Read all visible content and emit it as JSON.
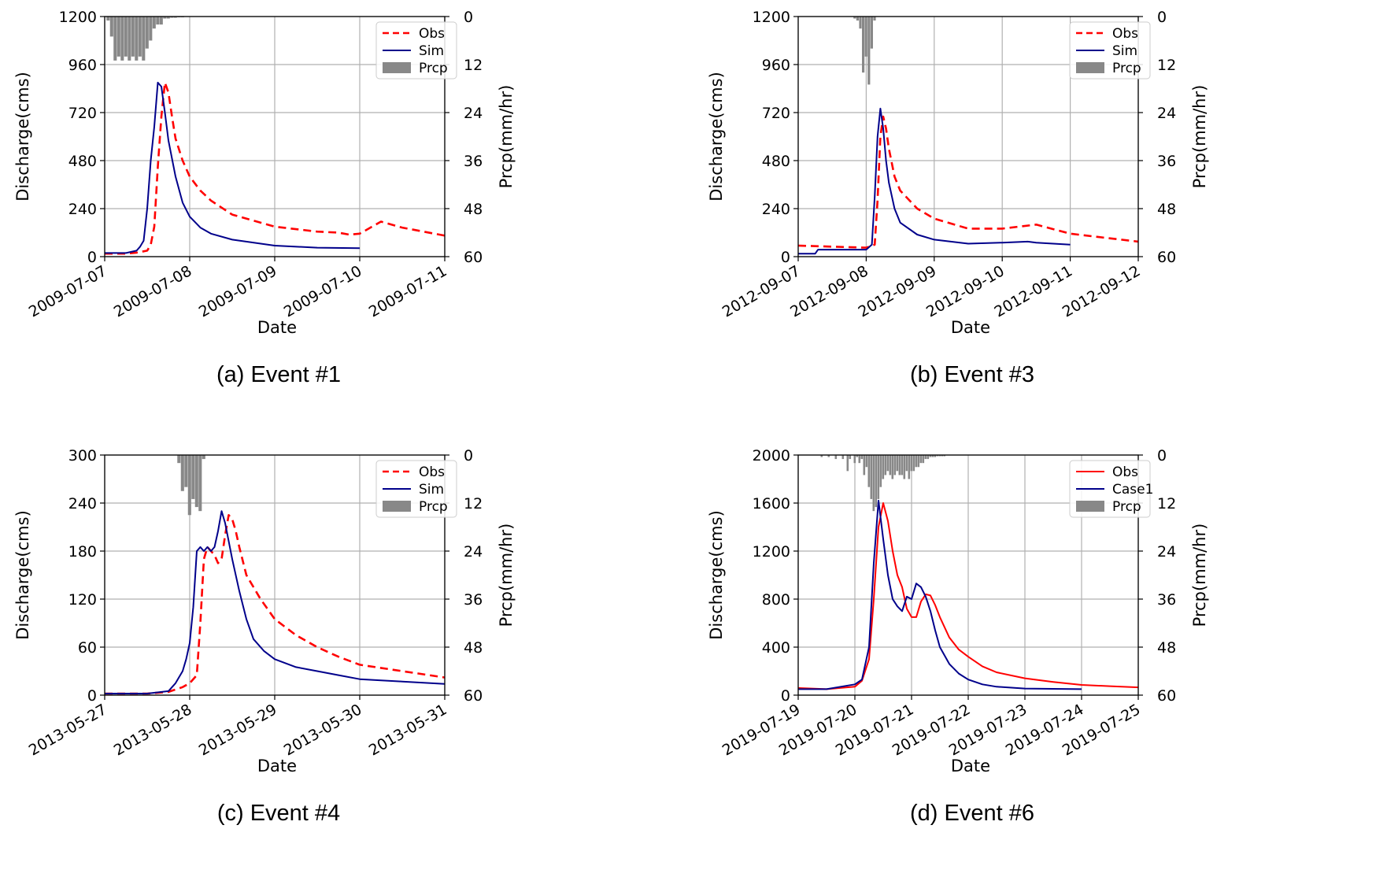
{
  "chart_data": [
    {
      "type": "line",
      "caption": "(a) Event #1",
      "xlabel": "Date",
      "ylabel": "Discharge(cms)",
      "y2label": "Prcp(mm/hr)",
      "x_ticks": [
        "2009-07-07",
        "2009-07-08",
        "2009-07-09",
        "2009-07-10",
        "2009-07-11"
      ],
      "xlim": [
        "2009-07-07 00:00",
        "2009-07-11 00:00"
      ],
      "y_ticks": [
        "0",
        "240",
        "480",
        "720",
        "960",
        "1200"
      ],
      "ylim": [
        0,
        1200
      ],
      "y2_ticks": [
        "0",
        "12",
        "24",
        "36",
        "48",
        "60"
      ],
      "y2lim": [
        0,
        60
      ],
      "y2_inverted": true,
      "grid": true,
      "legend_position": "top-right",
      "series": [
        {
          "name": "Obs",
          "style": "dashed",
          "color": "#ff0000",
          "x": [
            "2009-07-07 00:00",
            "2009-07-07 06:00",
            "2009-07-07 09:00",
            "2009-07-07 12:00",
            "2009-07-07 13:00",
            "2009-07-07 14:00",
            "2009-07-07 15:00",
            "2009-07-07 16:00",
            "2009-07-07 17:00",
            "2009-07-07 18:00",
            "2009-07-07 19:00",
            "2009-07-07 20:00",
            "2009-07-07 22:00",
            "2009-07-08 00:00",
            "2009-07-08 03:00",
            "2009-07-08 06:00",
            "2009-07-08 12:00",
            "2009-07-09 00:00",
            "2009-07-09 12:00",
            "2009-07-09 18:00",
            "2009-07-09 21:00",
            "2009-07-10 00:00",
            "2009-07-10 06:00",
            "2009-07-10 12:00",
            "2009-07-10 18:00",
            "2009-07-11 00:00"
          ],
          "y": [
            15,
            15,
            20,
            30,
            60,
            150,
            450,
            700,
            870,
            820,
            700,
            590,
            480,
            400,
            330,
            280,
            210,
            150,
            125,
            120,
            110,
            115,
            175,
            145,
            125,
            105
          ]
        },
        {
          "name": "Sim",
          "style": "solid",
          "color": "#00008b",
          "x": [
            "2009-07-07 00:00",
            "2009-07-07 06:00",
            "2009-07-07 09:00",
            "2009-07-07 10:00",
            "2009-07-07 11:00",
            "2009-07-07 12:00",
            "2009-07-07 13:00",
            "2009-07-07 14:00",
            "2009-07-07 15:00",
            "2009-07-07 16:00",
            "2009-07-07 17:00",
            "2009-07-07 18:00",
            "2009-07-07 20:00",
            "2009-07-07 22:00",
            "2009-07-08 00:00",
            "2009-07-08 03:00",
            "2009-07-08 06:00",
            "2009-07-08 12:00",
            "2009-07-09 00:00",
            "2009-07-09 12:00",
            "2009-07-10 00:00"
          ],
          "y": [
            18,
            18,
            30,
            50,
            80,
            240,
            480,
            650,
            870,
            850,
            720,
            580,
            400,
            270,
            200,
            145,
            115,
            85,
            55,
            45,
            42
          ]
        }
      ],
      "precip": {
        "name": "Prcp",
        "color": "#888888",
        "x": [
          "2009-07-07 01:00",
          "2009-07-07 02:00",
          "2009-07-07 03:00",
          "2009-07-07 04:00",
          "2009-07-07 05:00",
          "2009-07-07 06:00",
          "2009-07-07 07:00",
          "2009-07-07 08:00",
          "2009-07-07 09:00",
          "2009-07-07 10:00",
          "2009-07-07 11:00",
          "2009-07-07 12:00",
          "2009-07-07 13:00",
          "2009-07-07 14:00",
          "2009-07-07 15:00",
          "2009-07-07 16:00",
          "2009-07-07 17:00",
          "2009-07-07 18:00",
          "2009-07-07 19:00",
          "2009-07-07 20:00",
          "2009-07-07 21:00",
          "2009-07-07 22:00"
        ],
        "values": [
          1,
          5,
          11,
          10,
          11,
          10,
          11,
          10,
          11,
          10,
          11,
          8,
          6,
          3,
          2,
          2,
          0.5,
          0.5,
          0.3,
          0.3,
          0.2,
          0.2
        ]
      }
    },
    {
      "type": "line",
      "caption": "(b) Event #3",
      "xlabel": "Date",
      "ylabel": "Discharge(cms)",
      "y2label": "Prcp(mm/hr)",
      "x_ticks": [
        "2012-09-07",
        "2012-09-08",
        "2012-09-09",
        "2012-09-10",
        "2012-09-11",
        "2012-09-12"
      ],
      "xlim": [
        "2012-09-07 00:00",
        "2012-09-12 00:00"
      ],
      "y_ticks": [
        "0",
        "240",
        "480",
        "720",
        "960",
        "1200"
      ],
      "ylim": [
        0,
        1200
      ],
      "y2_ticks": [
        "0",
        "12",
        "24",
        "36",
        "48",
        "60"
      ],
      "y2lim": [
        0,
        60
      ],
      "y2_inverted": true,
      "grid": true,
      "legend_position": "top-right",
      "series": [
        {
          "name": "Obs",
          "style": "dashed",
          "color": "#ff0000",
          "x": [
            "2012-09-07 00:00",
            "2012-09-07 12:00",
            "2012-09-08 00:00",
            "2012-09-08 03:00",
            "2012-09-08 04:00",
            "2012-09-08 05:00",
            "2012-09-08 06:00",
            "2012-09-08 07:00",
            "2012-09-08 08:00",
            "2012-09-08 10:00",
            "2012-09-08 12:00",
            "2012-09-08 18:00",
            "2012-09-09 00:00",
            "2012-09-09 12:00",
            "2012-09-10 00:00",
            "2012-09-10 12:00",
            "2012-09-11 00:00",
            "2012-09-11 12:00",
            "2012-09-12 00:00"
          ],
          "y": [
            55,
            50,
            45,
            60,
            280,
            600,
            700,
            640,
            540,
            400,
            330,
            240,
            190,
            140,
            140,
            160,
            115,
            95,
            75
          ]
        },
        {
          "name": "Sim",
          "style": "solid",
          "color": "#00008b",
          "x": [
            "2012-09-07 00:00",
            "2012-09-07 06:00",
            "2012-09-07 07:00",
            "2012-09-07 12:00",
            "2012-09-08 00:00",
            "2012-09-08 02:00",
            "2012-09-08 03:00",
            "2012-09-08 04:00",
            "2012-09-08 05:00",
            "2012-09-08 06:00",
            "2012-09-08 07:00",
            "2012-09-08 08:00",
            "2012-09-08 10:00",
            "2012-09-08 12:00",
            "2012-09-08 18:00",
            "2012-09-09 00:00",
            "2012-09-09 12:00",
            "2012-09-10 00:00",
            "2012-09-10 09:00",
            "2012-09-10 12:00",
            "2012-09-11 00:00"
          ],
          "y": [
            15,
            15,
            35,
            35,
            35,
            60,
            300,
            600,
            740,
            640,
            480,
            370,
            240,
            170,
            110,
            85,
            65,
            70,
            75,
            70,
            60
          ]
        }
      ],
      "precip": {
        "name": "Prcp",
        "color": "#888888",
        "x": [
          "2012-09-07 20:00",
          "2012-09-07 21:00",
          "2012-09-07 22:00",
          "2012-09-07 23:00",
          "2012-09-08 00:00",
          "2012-09-08 01:00",
          "2012-09-08 02:00",
          "2012-09-08 03:00"
        ],
        "values": [
          0.5,
          1,
          3,
          14,
          10,
          17,
          8,
          1
        ]
      }
    },
    {
      "type": "line",
      "caption": "(c) Event #4",
      "xlabel": "Date",
      "ylabel": "Discharge(cms)",
      "y2label": "Prcp(mm/hr)",
      "x_ticks": [
        "2013-05-27",
        "2013-05-28",
        "2013-05-29",
        "2013-05-30",
        "2013-05-31"
      ],
      "xlim": [
        "2013-05-27 00:00",
        "2013-05-31 00:00"
      ],
      "y_ticks": [
        "0",
        "60",
        "120",
        "180",
        "240",
        "300"
      ],
      "ylim": [
        0,
        300
      ],
      "y2_ticks": [
        "0",
        "12",
        "24",
        "36",
        "48",
        "60"
      ],
      "y2lim": [
        0,
        60
      ],
      "y2_inverted": true,
      "grid": true,
      "legend_position": "top-right",
      "series": [
        {
          "name": "Obs",
          "style": "dashed",
          "color": "#ff0000",
          "x": [
            "2013-05-27 00:00",
            "2013-05-27 12:00",
            "2013-05-27 18:00",
            "2013-05-27 22:00",
            "2013-05-28 00:00",
            "2013-05-28 02:00",
            "2013-05-28 03:00",
            "2013-05-28 04:00",
            "2013-05-28 05:00",
            "2013-05-28 06:00",
            "2013-05-28 07:00",
            "2013-05-28 08:00",
            "2013-05-28 09:00",
            "2013-05-28 10:00",
            "2013-05-28 11:00",
            "2013-05-28 12:00",
            "2013-05-28 13:00",
            "2013-05-28 14:00",
            "2013-05-28 16:00",
            "2013-05-28 20:00",
            "2013-05-29 00:00",
            "2013-05-29 06:00",
            "2013-05-29 12:00",
            "2013-05-29 18:00",
            "2013-05-30 00:00",
            "2013-05-30 12:00",
            "2013-05-31 00:00"
          ],
          "y": [
            2,
            2,
            4,
            10,
            15,
            25,
            90,
            170,
            185,
            180,
            175,
            165,
            170,
            200,
            225,
            220,
            205,
            185,
            150,
            120,
            95,
            75,
            60,
            48,
            38,
            30,
            22
          ]
        },
        {
          "name": "Sim",
          "style": "solid",
          "color": "#00008b",
          "x": [
            "2013-05-27 00:00",
            "2013-05-27 12:00",
            "2013-05-27 18:00",
            "2013-05-27 20:00",
            "2013-05-27 22:00",
            "2013-05-27 23:00",
            "2013-05-28 00:00",
            "2013-05-28 01:00",
            "2013-05-28 02:00",
            "2013-05-28 03:00",
            "2013-05-28 04:00",
            "2013-05-28 05:00",
            "2013-05-28 06:00",
            "2013-05-28 07:00",
            "2013-05-28 08:00",
            "2013-05-28 09:00",
            "2013-05-28 10:00",
            "2013-05-28 12:00",
            "2013-05-28 14:00",
            "2013-05-28 16:00",
            "2013-05-28 18:00",
            "2013-05-28 21:00",
            "2013-05-29 00:00",
            "2013-05-29 06:00",
            "2013-05-29 12:00",
            "2013-05-29 18:00",
            "2013-05-30 00:00",
            "2013-05-30 12:00",
            "2013-05-31 00:00"
          ],
          "y": [
            2,
            2,
            5,
            15,
            30,
            45,
            65,
            110,
            180,
            185,
            180,
            185,
            180,
            185,
            205,
            230,
            215,
            170,
            130,
            95,
            70,
            55,
            45,
            35,
            30,
            25,
            20,
            17,
            14
          ]
        }
      ],
      "precip": {
        "name": "Prcp",
        "color": "#888888",
        "x": [
          "2013-05-27 21:00",
          "2013-05-27 22:00",
          "2013-05-27 23:00",
          "2013-05-28 00:00",
          "2013-05-28 01:00",
          "2013-05-28 02:00",
          "2013-05-28 03:00",
          "2013-05-28 04:00"
        ],
        "values": [
          2,
          9,
          8,
          15,
          11,
          13,
          14,
          1
        ]
      }
    },
    {
      "type": "line",
      "caption": "(d) Event #6",
      "xlabel": "Date",
      "ylabel": "Discharge(cms)",
      "y2label": "Prcp(mm/hr)",
      "x_ticks": [
        "2019-07-19",
        "2019-07-20",
        "2019-07-21",
        "2019-07-22",
        "2019-07-23",
        "2019-07-24",
        "2019-07-25"
      ],
      "xlim": [
        "2019-07-19 00:00",
        "2019-07-25 00:00"
      ],
      "y_ticks": [
        "0",
        "400",
        "800",
        "1200",
        "1600",
        "2000"
      ],
      "ylim": [
        0,
        2000
      ],
      "y2_ticks": [
        "0",
        "12",
        "24",
        "36",
        "48",
        "60"
      ],
      "y2lim": [
        0,
        60
      ],
      "y2_inverted": true,
      "grid": true,
      "legend_position": "top-right",
      "series": [
        {
          "name": "Obs",
          "style": "solid",
          "color": "#ff0000",
          "x": [
            "2019-07-19 00:00",
            "2019-07-19 12:00",
            "2019-07-20 00:00",
            "2019-07-20 03:00",
            "2019-07-20 06:00",
            "2019-07-20 08:00",
            "2019-07-20 10:00",
            "2019-07-20 12:00",
            "2019-07-20 14:00",
            "2019-07-20 16:00",
            "2019-07-20 18:00",
            "2019-07-20 20:00",
            "2019-07-20 22:00",
            "2019-07-21 00:00",
            "2019-07-21 02:00",
            "2019-07-21 04:00",
            "2019-07-21 06:00",
            "2019-07-21 08:00",
            "2019-07-21 10:00",
            "2019-07-21 12:00",
            "2019-07-21 16:00",
            "2019-07-21 20:00",
            "2019-07-22 00:00",
            "2019-07-22 06:00",
            "2019-07-22 12:00",
            "2019-07-23 00:00",
            "2019-07-23 12:00",
            "2019-07-24 00:00",
            "2019-07-24 12:00",
            "2019-07-25 00:00"
          ],
          "y": [
            60,
            50,
            70,
            120,
            300,
            800,
            1400,
            1600,
            1450,
            1200,
            1000,
            900,
            720,
            650,
            650,
            780,
            840,
            830,
            750,
            650,
            480,
            380,
            320,
            240,
            190,
            140,
            110,
            85,
            75,
            65
          ]
        },
        {
          "name": "Case1",
          "style": "solid",
          "color": "#00008b",
          "x": [
            "2019-07-19 00:00",
            "2019-07-19 12:00",
            "2019-07-20 00:00",
            "2019-07-20 03:00",
            "2019-07-20 06:00",
            "2019-07-20 08:00",
            "2019-07-20 10:00",
            "2019-07-20 12:00",
            "2019-07-20 14:00",
            "2019-07-20 16:00",
            "2019-07-20 18:00",
            "2019-07-20 20:00",
            "2019-07-20 22:00",
            "2019-07-21 00:00",
            "2019-07-21 02:00",
            "2019-07-21 04:00",
            "2019-07-21 06:00",
            "2019-07-21 08:00",
            "2019-07-21 10:00",
            "2019-07-21 12:00",
            "2019-07-21 16:00",
            "2019-07-21 20:00",
            "2019-07-22 00:00",
            "2019-07-22 06:00",
            "2019-07-22 12:00",
            "2019-07-23 00:00",
            "2019-07-24 00:00"
          ],
          "y": [
            50,
            50,
            90,
            130,
            400,
            1100,
            1620,
            1300,
            1000,
            800,
            740,
            700,
            820,
            800,
            930,
            900,
            820,
            700,
            540,
            400,
            260,
            180,
            130,
            90,
            70,
            55,
            50
          ]
        }
      ],
      "precip": {
        "name": "Prcp",
        "color": "#888888",
        "x": [
          "2019-07-19 10:00",
          "2019-07-19 13:00",
          "2019-07-19 16:00",
          "2019-07-19 19:00",
          "2019-07-19 21:00",
          "2019-07-19 22:00",
          "2019-07-20 00:00",
          "2019-07-20 01:00",
          "2019-07-20 02:00",
          "2019-07-20 03:00",
          "2019-07-20 04:00",
          "2019-07-20 05:00",
          "2019-07-20 06:00",
          "2019-07-20 07:00",
          "2019-07-20 08:00",
          "2019-07-20 09:00",
          "2019-07-20 10:00",
          "2019-07-20 11:00",
          "2019-07-20 12:00",
          "2019-07-20 13:00",
          "2019-07-20 14:00",
          "2019-07-20 15:00",
          "2019-07-20 16:00",
          "2019-07-20 17:00",
          "2019-07-20 18:00",
          "2019-07-20 19:00",
          "2019-07-20 20:00",
          "2019-07-20 21:00",
          "2019-07-20 22:00",
          "2019-07-20 23:00",
          "2019-07-21 00:00",
          "2019-07-21 01:00",
          "2019-07-21 02:00",
          "2019-07-21 03:00",
          "2019-07-21 04:00",
          "2019-07-21 05:00",
          "2019-07-21 06:00",
          "2019-07-21 07:00",
          "2019-07-21 08:00",
          "2019-07-21 09:00",
          "2019-07-21 10:00",
          "2019-07-21 11:00",
          "2019-07-21 12:00",
          "2019-07-21 13:00",
          "2019-07-21 14:00"
        ],
        "values": [
          0.5,
          0.5,
          1,
          1,
          4,
          1,
          2,
          0.5,
          2,
          1,
          5,
          3,
          8,
          11,
          14,
          13,
          11,
          8,
          6,
          5,
          4,
          5,
          6,
          5,
          4,
          5,
          5,
          6,
          4,
          6,
          4,
          4,
          3,
          3,
          2,
          2,
          1,
          1,
          0.5,
          0.5,
          0.5,
          0.3,
          0.3,
          0.3,
          0.3
        ]
      }
    }
  ],
  "colors": {
    "obs_red": "#ff0000",
    "sim_navy": "#00008b",
    "prcp_gray": "#888888",
    "grid_gray": "#b0b0b0"
  }
}
